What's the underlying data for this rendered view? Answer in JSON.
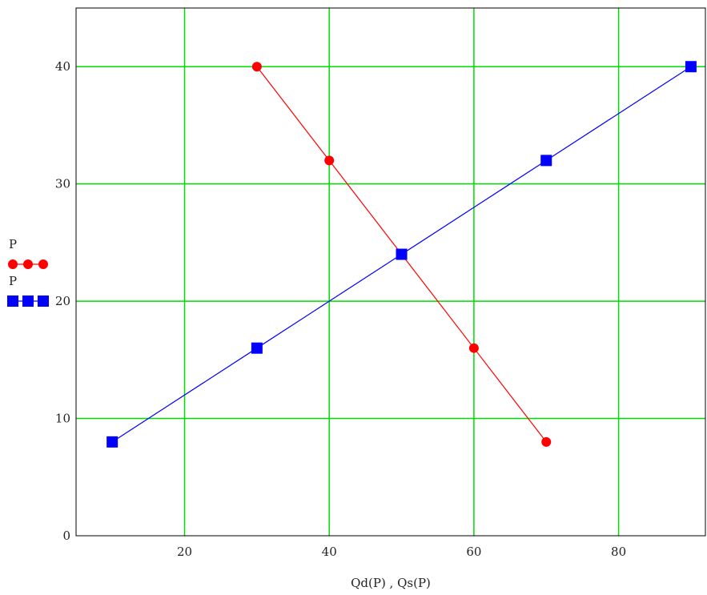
{
  "chart_data": {
    "type": "line",
    "xlabel": "Qd(P) , Qs(P)",
    "xlim": [
      5,
      92
    ],
    "ylim": [
      0,
      45
    ],
    "x_ticks": [
      "20",
      "40",
      "60",
      "80"
    ],
    "y_ticks": [
      "0",
      "10",
      "20",
      "30",
      "40"
    ],
    "grid": true,
    "grid_color": "#00dd00",
    "legend_position": "left",
    "series": [
      {
        "name": "P",
        "color": "#ff0000",
        "marker": "circle",
        "x": [
          30,
          40,
          50,
          60,
          70
        ],
        "y": [
          40,
          32,
          24,
          16,
          8
        ]
      },
      {
        "name": "P",
        "color": "#0000ff",
        "marker": "square",
        "x": [
          10,
          30,
          50,
          70,
          90
        ],
        "y": [
          8,
          16,
          24,
          32,
          40
        ]
      }
    ]
  }
}
